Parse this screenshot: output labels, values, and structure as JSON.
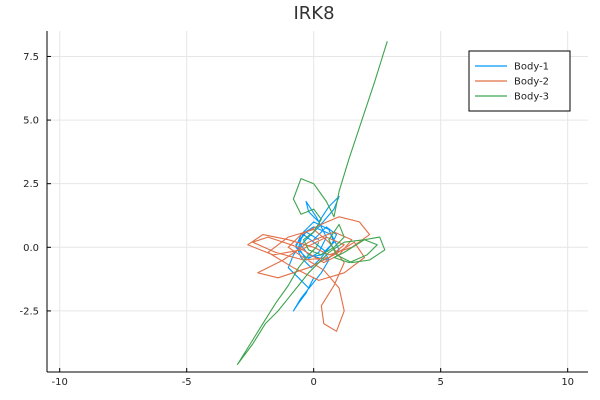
{
  "chart_data": {
    "type": "line",
    "title": "IRK8",
    "xlabel": "",
    "ylabel": "",
    "xlim": [
      -10.5,
      10.8
    ],
    "ylim": [
      -4.9,
      8.5
    ],
    "xticks": [
      -10,
      -5,
      0,
      5,
      10
    ],
    "xtick_labels": [
      "-10",
      "-5",
      "0",
      "5",
      "10"
    ],
    "yticks": [
      -2.5,
      0,
      2.5,
      5,
      7.5
    ],
    "ytick_labels": [
      "-2.5",
      "0.0",
      "2.5",
      "5.0",
      "7.5"
    ],
    "grid": true,
    "legend_position": "top-right",
    "series": [
      {
        "name": "Body-1",
        "color": "#009AFA",
        "x": [
          0.2,
          -0.3,
          -0.6,
          -0.2,
          0.5,
          1.0,
          0.7,
          0.0,
          -0.5,
          -0.7,
          -0.3,
          0.3,
          0.8,
          0.6,
          0.0,
          -0.4,
          -0.6,
          -0.3,
          0.2,
          0.5,
          0.1,
          -0.3,
          -0.2,
          0.2,
          0.6,
          1.0,
          0.8,
          0.2,
          -0.4,
          -0.8,
          -1.0,
          -0.6,
          -0.2,
          0.0,
          -0.3,
          -0.6,
          -0.8,
          -0.5,
          -0.1,
          0.3,
          0.6,
          0.4,
          0.0,
          -0.4,
          -0.7,
          -0.5,
          -0.1,
          0.3,
          0.7,
          0.9,
          0.5,
          0.0
        ],
        "y": [
          0.3,
          0.6,
          0.2,
          -0.3,
          -0.5,
          -0.1,
          0.5,
          0.8,
          0.5,
          0.0,
          -0.4,
          -0.3,
          0.2,
          0.7,
          1.0,
          0.6,
          0.0,
          -0.5,
          -0.2,
          0.4,
          1.2,
          1.8,
          1.4,
          1.0,
          1.6,
          2.0,
          1.5,
          0.8,
          0.2,
          -0.3,
          -0.8,
          -1.2,
          -1.6,
          -1.2,
          -1.8,
          -2.2,
          -2.5,
          -2.0,
          -1.5,
          -1.0,
          -0.5,
          -0.1,
          0.2,
          0.5,
          0.1,
          -0.4,
          -0.8,
          -0.4,
          0.1,
          0.5,
          0.8,
          0.3
        ]
      },
      {
        "name": "Body-2",
        "color": "#E26F46",
        "x": [
          0.0,
          -1.0,
          -2.0,
          -2.6,
          -1.6,
          -0.5,
          0.5,
          1.2,
          0.6,
          -0.4,
          -1.5,
          -2.4,
          -1.8,
          -0.6,
          0.4,
          1.0,
          1.5,
          0.8,
          -0.2,
          -1.2,
          -2.2,
          -1.4,
          -0.2,
          0.8,
          1.6,
          2.0,
          1.2,
          0.2,
          -0.8,
          -1.8,
          -1.0,
          0.0,
          0.6,
          1.2,
          0.8,
          0.3,
          0.4,
          0.9,
          1.2,
          1.0,
          0.4,
          -0.4,
          -1.0,
          -0.5,
          0.3,
          1.0,
          1.8,
          2.2,
          1.5,
          0.6,
          0.0
        ],
        "y": [
          0.0,
          0.3,
          0.5,
          0.1,
          -0.3,
          -0.1,
          0.4,
          0.1,
          -0.4,
          -0.5,
          -0.2,
          0.2,
          0.4,
          0.0,
          -0.6,
          -0.3,
          0.3,
          0.6,
          0.2,
          -0.5,
          -1.0,
          -1.2,
          -0.8,
          -0.3,
          0.2,
          -0.4,
          -1.0,
          -1.3,
          -0.8,
          -0.2,
          0.4,
          0.7,
          0.2,
          -0.6,
          -1.5,
          -2.3,
          -3.0,
          -3.3,
          -2.5,
          -1.6,
          -0.9,
          -0.4,
          0.0,
          0.5,
          0.9,
          1.2,
          1.0,
          0.5,
          0.0,
          -0.3,
          0.0
        ]
      },
      {
        "name": "Body-3",
        "color": "#3DA44D",
        "x": [
          2.9,
          2.4,
          1.9,
          1.4,
          1.0,
          0.8,
          0.5,
          0.0,
          -0.5,
          -0.8,
          -0.5,
          0.0,
          0.3,
          0.0,
          -0.4,
          -0.2,
          0.3,
          0.8,
          1.2,
          1.0,
          0.6,
          0.9,
          1.5,
          2.2,
          2.8,
          2.6,
          2.0,
          1.2,
          0.8,
          1.4,
          2.1,
          2.5,
          2.0,
          1.2,
          0.6,
          0.2,
          -0.2,
          -0.6,
          -1.0,
          -1.4,
          -1.9,
          -2.4,
          -3.0,
          -2.5,
          -2.0,
          -1.5,
          -1.0,
          -0.6,
          -0.2,
          0.1,
          0.2
        ],
        "y": [
          8.1,
          6.5,
          5.0,
          3.5,
          2.2,
          1.2,
          1.8,
          2.5,
          2.7,
          1.9,
          1.3,
          1.5,
          1.1,
          0.6,
          0.3,
          -0.1,
          -0.3,
          0.0,
          0.4,
          0.9,
          0.3,
          -0.3,
          -0.6,
          -0.5,
          -0.1,
          0.4,
          0.3,
          -0.2,
          -0.4,
          -0.6,
          -0.3,
          0.1,
          0.3,
          0.2,
          -0.2,
          -0.6,
          -1.0,
          -1.5,
          -2.0,
          -2.5,
          -3.0,
          -3.8,
          -4.6,
          -3.8,
          -3.0,
          -2.2,
          -1.5,
          -0.8,
          -0.3,
          0.0,
          0.2
        ]
      }
    ]
  }
}
